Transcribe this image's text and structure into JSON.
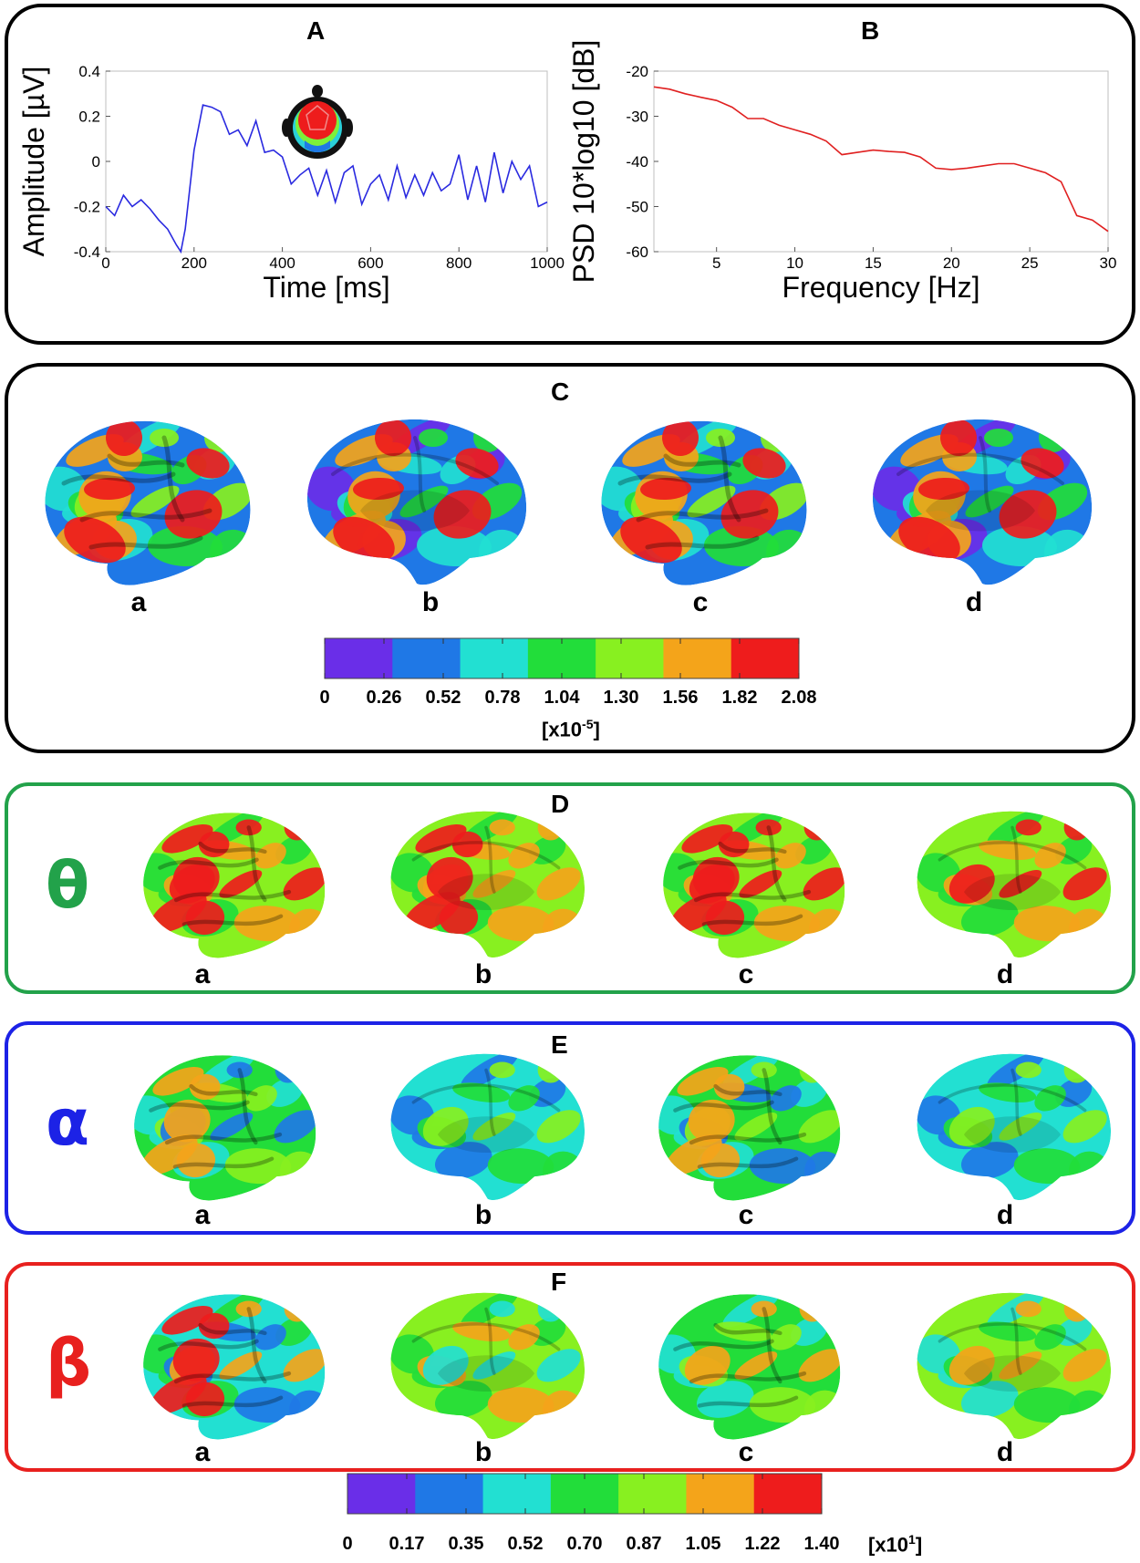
{
  "chart_data": [
    {
      "type": "line",
      "panel": "A",
      "xlabel": "Time [ms]",
      "ylabel": "Amplitude [µV]",
      "xlim": [
        0,
        1000
      ],
      "ylim": [
        -0.4,
        0.4
      ],
      "xticks": [
        "0",
        "200",
        "400",
        "600",
        "800",
        "1000"
      ],
      "yticks": [
        "0.4",
        "0.2",
        "0",
        "-0.2",
        "-0.4"
      ],
      "color": "#2a2ae0",
      "x": [
        0,
        20,
        40,
        60,
        80,
        100,
        120,
        140,
        160,
        170,
        180,
        200,
        220,
        240,
        260,
        280,
        300,
        320,
        340,
        360,
        380,
        400,
        420,
        440,
        460,
        480,
        500,
        520,
        540,
        560,
        580,
        600,
        620,
        640,
        660,
        680,
        700,
        720,
        740,
        760,
        780,
        800,
        820,
        840,
        860,
        880,
        900,
        920,
        940,
        960,
        980,
        1000
      ],
      "y": [
        -0.2,
        -0.24,
        -0.15,
        -0.2,
        -0.17,
        -0.21,
        -0.26,
        -0.3,
        -0.37,
        -0.4,
        -0.3,
        0.05,
        0.25,
        0.24,
        0.22,
        0.12,
        0.14,
        0.07,
        0.18,
        0.04,
        0.05,
        0.02,
        -0.1,
        -0.06,
        -0.03,
        -0.15,
        -0.04,
        -0.18,
        -0.05,
        -0.02,
        -0.19,
        -0.1,
        -0.06,
        -0.17,
        -0.02,
        -0.16,
        -0.06,
        -0.15,
        -0.05,
        -0.13,
        -0.1,
        0.03,
        -0.17,
        -0.02,
        -0.18,
        0.04,
        -0.14,
        0.0,
        -0.08,
        -0.02,
        -0.2,
        -0.18
      ]
    },
    {
      "type": "line",
      "panel": "B",
      "xlabel": "Frequency [Hz]",
      "ylabel": "PSD 10*log10 [dB]",
      "xlim": [
        1,
        30
      ],
      "ylim": [
        -60,
        -20
      ],
      "xticks": [
        "5",
        "10",
        "15",
        "20",
        "25",
        "30"
      ],
      "yticks": [
        "-20",
        "-30",
        "-40",
        "-50",
        "-60"
      ],
      "color": "#e02020",
      "x": [
        1,
        2,
        3,
        4,
        5,
        6,
        7,
        8,
        9,
        10,
        11,
        12,
        13,
        14,
        15,
        16,
        17,
        18,
        19,
        20,
        21,
        22,
        23,
        24,
        25,
        26,
        27,
        28,
        29,
        30
      ],
      "y": [
        -23.5,
        -24,
        -25,
        -25.8,
        -26.5,
        -28,
        -30.5,
        -30.5,
        -32,
        -33,
        -34,
        -35.5,
        -38.5,
        -38,
        -37.5,
        -37.8,
        -38,
        -39,
        -41.5,
        -41.8,
        -41.5,
        -41,
        -40.5,
        -40.5,
        -41.5,
        -42.5,
        -44.5,
        -52,
        -53,
        -55.5
      ]
    }
  ],
  "panels": {
    "A": "A",
    "B": "B",
    "C": "C",
    "D": "D",
    "E": "E",
    "F": "F"
  },
  "subpanel_labels": [
    "a",
    "b",
    "c",
    "d"
  ],
  "bands": {
    "D": "θ",
    "E": "α",
    "F": "β"
  },
  "colorbar_c": {
    "ticks": [
      "0",
      "0.26",
      "0.52",
      "0.78",
      "1.04",
      "1.30",
      "1.56",
      "1.82",
      "2.08"
    ],
    "unit_prefix": "[x10",
    "unit_exp": "-5",
    "unit_suffix": "]"
  },
  "colorbar_f": {
    "ticks": [
      "0",
      "0.17",
      "0.35",
      "0.52",
      "0.70",
      "0.87",
      "1.05",
      "1.22",
      "1.40"
    ],
    "unit_prefix": "[x10",
    "unit_exp": "1",
    "unit_suffix": "]"
  },
  "colors": {
    "scale": [
      "#6a2ee8",
      "#1f78e6",
      "#22e0d2",
      "#22dd3a",
      "#88f020",
      "#f4a41a",
      "#ee1c1c"
    ],
    "theta_border": "#22a24a",
    "alpha_border": "#1c22e6",
    "beta_border": "#e8201e"
  }
}
